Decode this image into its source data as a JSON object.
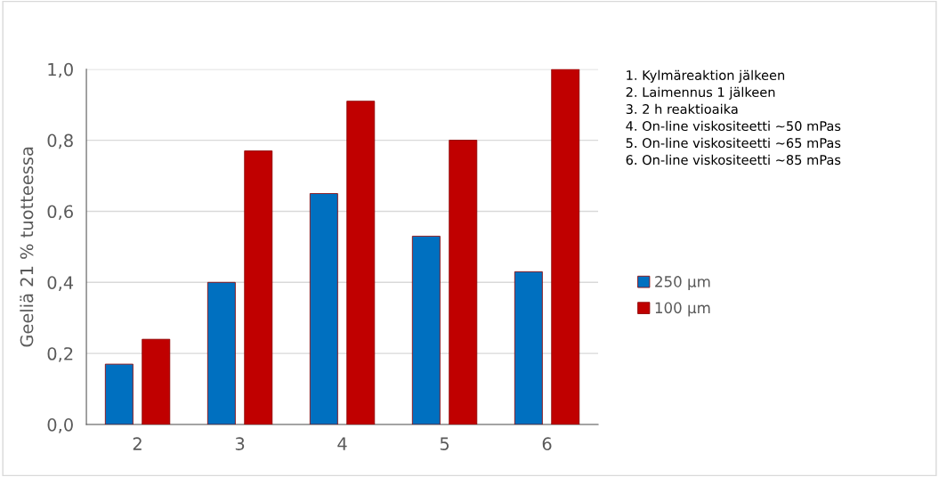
{
  "chart_data": {
    "type": "bar",
    "ylabel": "Geeliä 21 % tuotteessa",
    "categories": [
      "2",
      "3",
      "4",
      "5",
      "6"
    ],
    "series": [
      {
        "name": "250 µm",
        "color": "#0070c0",
        "values": [
          0.17,
          0.4,
          0.65,
          0.53,
          0.43
        ]
      },
      {
        "name": "100 µm",
        "color": "#c00000",
        "values": [
          0.24,
          0.77,
          0.91,
          0.8,
          1.0
        ]
      }
    ],
    "ylim": [
      0,
      1.0
    ],
    "yticks": [
      {
        "value": 0,
        "label": "0,0"
      },
      {
        "value": 0.2,
        "label": "0,2"
      },
      {
        "value": 0.4,
        "label": "0,4"
      },
      {
        "value": 0.6,
        "label": "0,6"
      },
      {
        "value": 0.8,
        "label": "0,8"
      },
      {
        "value": 1.0,
        "label": "1,0"
      }
    ],
    "grid": "y",
    "legend": "right",
    "annotations": [
      "1. Kylmäreaktion jälkeen",
      "2. Laimennus 1 jälkeen",
      "3. 2 h reaktioaika",
      "4. On-line viskositeetti ~50 mPas",
      "5. On-line viskositeetti ~65 mPas",
      "6. On-line viskositeetti ~85 mPas"
    ]
  }
}
